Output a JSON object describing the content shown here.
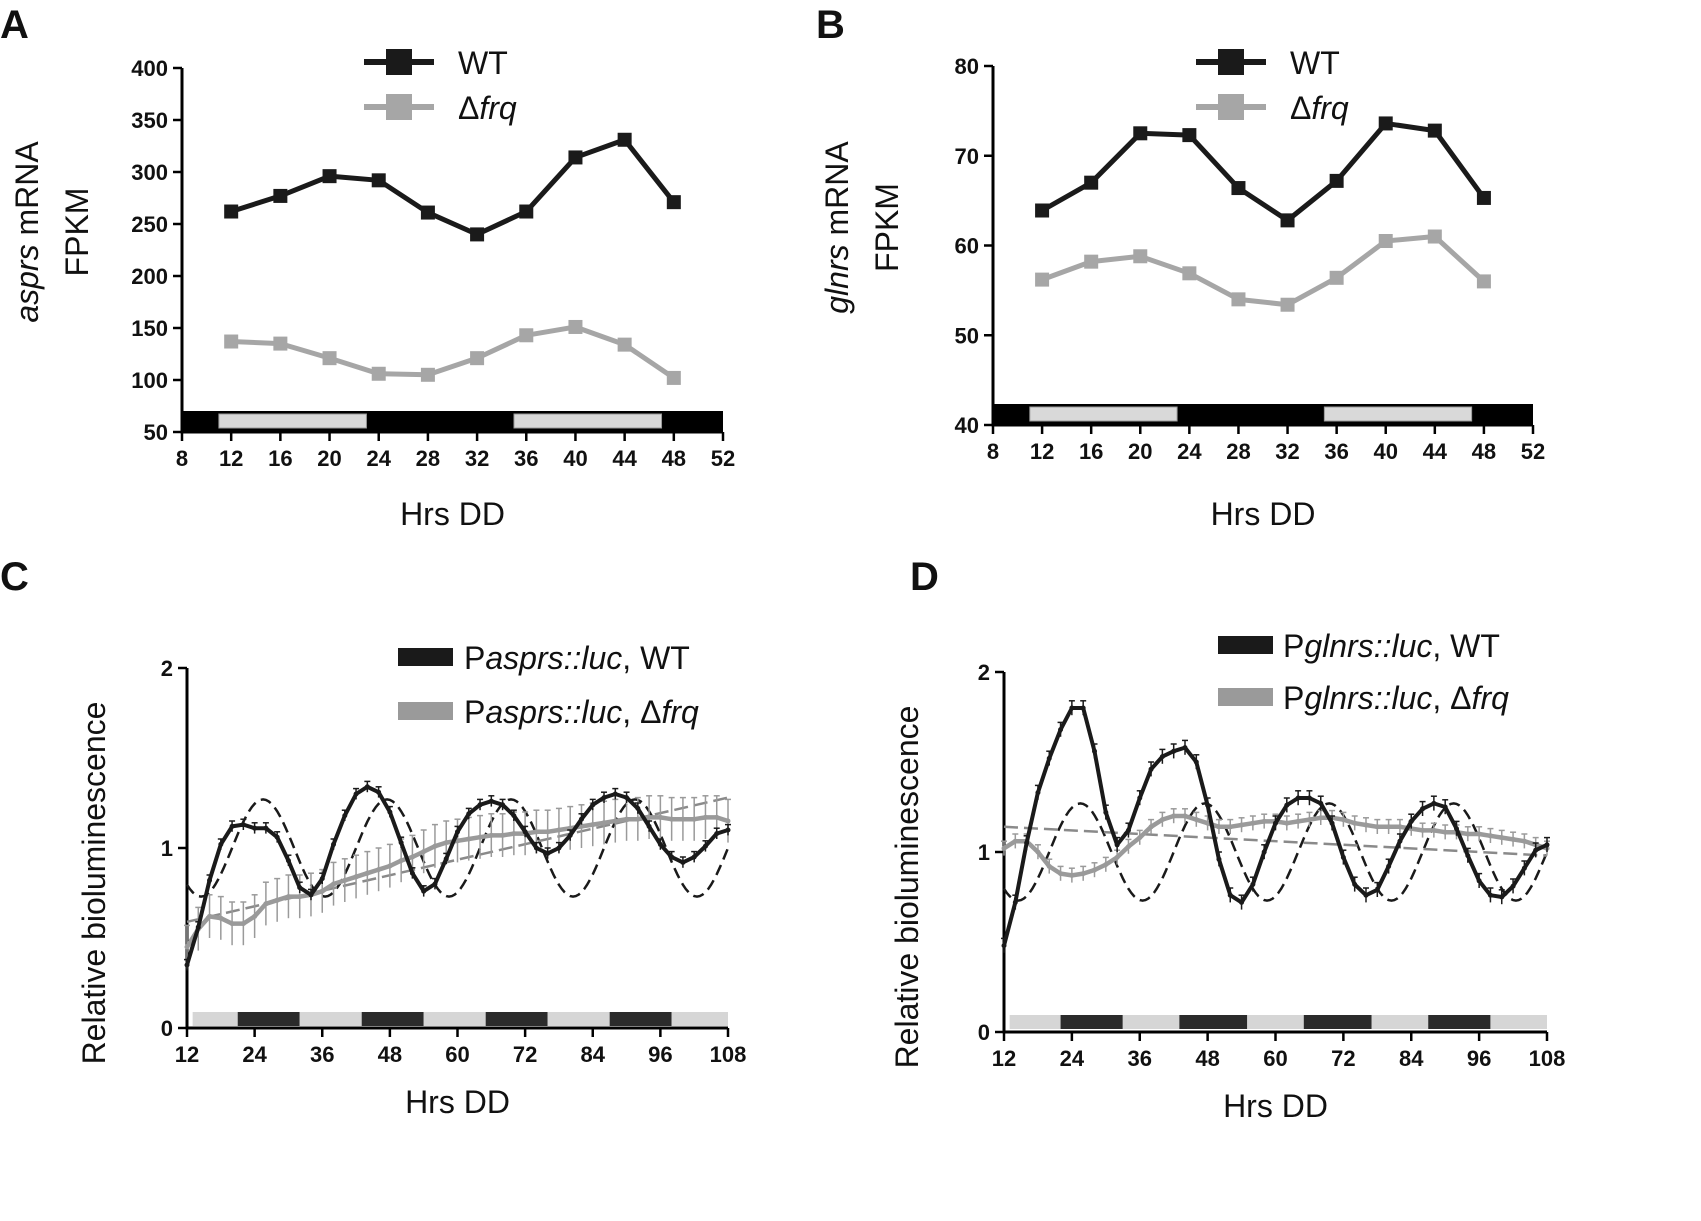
{
  "chart_data": [
    {
      "panel": "A",
      "type": "line",
      "x": [
        12,
        16,
        20,
        24,
        28,
        32,
        36,
        40,
        44,
        48
      ],
      "series": [
        {
          "name": "WT",
          "color": "#1a1a1a",
          "values": [
            262,
            277,
            296,
            292,
            261,
            240,
            262,
            314,
            331,
            271
          ]
        },
        {
          "name": "Δfrq",
          "color": "#a6a6a6",
          "values": [
            137,
            135,
            121,
            106,
            105,
            121,
            143,
            151,
            134,
            102
          ]
        }
      ],
      "xlabel": "Hrs DD",
      "ylabel_italic": "asprs",
      "ylabel_rest": " mRNA",
      "ylabel_line2": "FPKM",
      "xlim": [
        8,
        52
      ],
      "ylim": [
        50,
        400
      ],
      "xticks": [
        8,
        12,
        16,
        20,
        24,
        28,
        32,
        36,
        40,
        44,
        48,
        52
      ],
      "yticks": [
        50,
        100,
        150,
        200,
        250,
        300,
        350,
        400
      ],
      "marker": "square",
      "legend_position": "top-center",
      "condition_bar": [
        {
          "from": 8,
          "to": 11,
          "state": "dark"
        },
        {
          "from": 11,
          "to": 23,
          "state": "light"
        },
        {
          "from": 23,
          "to": 35,
          "state": "dark"
        },
        {
          "from": 35,
          "to": 47,
          "state": "light"
        },
        {
          "from": 47,
          "to": 52,
          "state": "dark"
        }
      ]
    },
    {
      "panel": "B",
      "type": "line",
      "x": [
        12,
        16,
        20,
        24,
        28,
        32,
        36,
        40,
        44,
        48
      ],
      "series": [
        {
          "name": "WT",
          "color": "#1a1a1a",
          "values": [
            63.9,
            67.0,
            72.5,
            72.3,
            66.4,
            62.8,
            67.2,
            73.6,
            72.8,
            65.3
          ]
        },
        {
          "name": "Δfrq",
          "color": "#a6a6a6",
          "values": [
            56.2,
            58.2,
            58.8,
            56.9,
            54.0,
            53.4,
            56.4,
            60.5,
            61.0,
            56.0
          ]
        }
      ],
      "xlabel": "Hrs DD",
      "ylabel_italic": "glnrs",
      "ylabel_rest": " mRNA",
      "ylabel_line2": "FPKM",
      "xlim": [
        8,
        52
      ],
      "ylim": [
        40,
        80
      ],
      "xticks": [
        8,
        12,
        16,
        20,
        24,
        28,
        32,
        36,
        40,
        44,
        48,
        52
      ],
      "yticks": [
        40,
        50,
        60,
        70,
        80
      ],
      "marker": "square",
      "legend_position": "top-center",
      "condition_bar": [
        {
          "from": 8,
          "to": 11,
          "state": "dark"
        },
        {
          "from": 11,
          "to": 23,
          "state": "light"
        },
        {
          "from": 23,
          "to": 35,
          "state": "dark"
        },
        {
          "from": 35,
          "to": 47,
          "state": "light"
        },
        {
          "from": 47,
          "to": 52,
          "state": "dark"
        }
      ]
    },
    {
      "panel": "C",
      "type": "line",
      "series": [
        {
          "name_prefix": "P",
          "name_italic": "asprs::luc",
          "name_suffix": ", WT",
          "color": "#1a1a1a",
          "x": [
            12,
            14,
            16,
            18,
            20,
            22,
            24,
            26,
            28,
            30,
            32,
            34,
            36,
            38,
            40,
            42,
            44,
            46,
            48,
            50,
            52,
            54,
            56,
            58,
            60,
            62,
            64,
            66,
            68,
            70,
            72,
            74,
            76,
            78,
            80,
            82,
            84,
            86,
            88,
            90,
            92,
            94,
            96,
            98,
            100,
            102,
            104,
            106,
            108
          ],
          "values": [
            0.35,
            0.56,
            0.82,
            1.02,
            1.12,
            1.13,
            1.11,
            1.11,
            1.06,
            0.93,
            0.78,
            0.74,
            0.83,
            1.02,
            1.18,
            1.3,
            1.34,
            1.31,
            1.2,
            1.03,
            0.86,
            0.76,
            0.8,
            0.94,
            1.09,
            1.19,
            1.24,
            1.26,
            1.24,
            1.18,
            1.09,
            1.0,
            0.97,
            1.0,
            1.07,
            1.16,
            1.24,
            1.28,
            1.3,
            1.28,
            1.22,
            1.12,
            1.02,
            0.95,
            0.92,
            0.95,
            1.01,
            1.08,
            1.1
          ],
          "error": 0.03
        },
        {
          "name_prefix": "P",
          "name_italic": "asprs::luc",
          "name_suffix": ", Δfrq",
          "color": "#9a9a9a",
          "x": [
            12,
            14,
            16,
            18,
            20,
            22,
            24,
            26,
            28,
            30,
            32,
            34,
            36,
            38,
            40,
            42,
            44,
            46,
            48,
            50,
            52,
            54,
            56,
            58,
            60,
            62,
            64,
            66,
            68,
            70,
            72,
            74,
            76,
            78,
            80,
            82,
            84,
            86,
            88,
            90,
            92,
            94,
            96,
            98,
            100,
            102,
            104,
            106,
            108
          ],
          "values": [
            0.45,
            0.55,
            0.62,
            0.61,
            0.58,
            0.58,
            0.62,
            0.69,
            0.71,
            0.73,
            0.73,
            0.74,
            0.76,
            0.8,
            0.82,
            0.84,
            0.86,
            0.88,
            0.9,
            0.93,
            0.95,
            0.98,
            1.01,
            1.03,
            1.04,
            1.05,
            1.06,
            1.07,
            1.07,
            1.08,
            1.08,
            1.09,
            1.09,
            1.1,
            1.11,
            1.12,
            1.13,
            1.14,
            1.15,
            1.16,
            1.16,
            1.17,
            1.17,
            1.16,
            1.16,
            1.16,
            1.17,
            1.17,
            1.15
          ],
          "error": 0.12
        }
      ],
      "fits": [
        {
          "kind": "sinusoid",
          "style": "dashed",
          "color": "#1a1a1a",
          "mean": 1.0,
          "amplitude": 0.27,
          "period": 22.0,
          "peak": 25.5
        },
        {
          "kind": "linear",
          "style": "dashed",
          "color": "#8a8a8a",
          "from": [
            12,
            0.59
          ],
          "to": [
            108,
            1.28
          ]
        }
      ],
      "xlabel": "Hrs DD",
      "ylabel": "Relative bioluminescence",
      "xlim": [
        12,
        108
      ],
      "ylim": [
        0,
        2
      ],
      "xticks": [
        12,
        24,
        36,
        48,
        60,
        72,
        84,
        96,
        108
      ],
      "yticks": [
        0,
        1,
        2
      ],
      "legend_position": "top-right",
      "condition_bar": [
        {
          "from": 13,
          "to": 21,
          "state": "light"
        },
        {
          "from": 21,
          "to": 32,
          "state": "dark"
        },
        {
          "from": 32,
          "to": 43,
          "state": "light"
        },
        {
          "from": 43,
          "to": 54,
          "state": "dark"
        },
        {
          "from": 54,
          "to": 65,
          "state": "light"
        },
        {
          "from": 65,
          "to": 76,
          "state": "dark"
        },
        {
          "from": 76,
          "to": 87,
          "state": "light"
        },
        {
          "from": 87,
          "to": 98,
          "state": "dark"
        },
        {
          "from": 98,
          "to": 108,
          "state": "light"
        }
      ]
    },
    {
      "panel": "D",
      "type": "line",
      "series": [
        {
          "name_prefix": "P",
          "name_italic": "glnrs::luc",
          "name_suffix": ", WT",
          "color": "#1a1a1a",
          "x": [
            12,
            14,
            16,
            18,
            20,
            22,
            24,
            26,
            28,
            30,
            32,
            34,
            36,
            38,
            40,
            42,
            44,
            46,
            48,
            50,
            52,
            54,
            56,
            58,
            60,
            62,
            64,
            66,
            68,
            70,
            72,
            74,
            76,
            78,
            80,
            82,
            84,
            86,
            88,
            90,
            92,
            94,
            96,
            98,
            100,
            102,
            104,
            106,
            108
          ],
          "values": [
            0.48,
            0.72,
            1.05,
            1.33,
            1.52,
            1.68,
            1.8,
            1.8,
            1.56,
            1.22,
            1.04,
            1.12,
            1.3,
            1.46,
            1.53,
            1.56,
            1.58,
            1.5,
            1.26,
            0.96,
            0.76,
            0.72,
            0.82,
            1.0,
            1.16,
            1.26,
            1.3,
            1.3,
            1.27,
            1.16,
            0.97,
            0.82,
            0.76,
            0.79,
            0.92,
            1.06,
            1.17,
            1.24,
            1.27,
            1.25,
            1.13,
            0.98,
            0.84,
            0.76,
            0.75,
            0.81,
            0.91,
            1.01,
            1.04
          ],
          "error": 0.04
        },
        {
          "name_prefix": "P",
          "name_italic": "glnrs::luc",
          "name_suffix": ", Δfrq",
          "color": "#9a9a9a",
          "x": [
            12,
            14,
            16,
            18,
            20,
            22,
            24,
            26,
            28,
            30,
            32,
            34,
            36,
            38,
            40,
            42,
            44,
            46,
            48,
            50,
            52,
            54,
            56,
            58,
            60,
            62,
            64,
            66,
            68,
            70,
            72,
            74,
            76,
            78,
            80,
            82,
            84,
            86,
            88,
            90,
            92,
            94,
            96,
            98,
            100,
            102,
            104,
            106,
            108
          ],
          "values": [
            1.02,
            1.06,
            1.06,
            1.0,
            0.92,
            0.88,
            0.87,
            0.88,
            0.9,
            0.93,
            0.97,
            1.03,
            1.08,
            1.14,
            1.18,
            1.2,
            1.2,
            1.18,
            1.16,
            1.14,
            1.14,
            1.15,
            1.16,
            1.17,
            1.17,
            1.16,
            1.17,
            1.18,
            1.19,
            1.19,
            1.18,
            1.16,
            1.15,
            1.14,
            1.14,
            1.14,
            1.13,
            1.12,
            1.12,
            1.11,
            1.11,
            1.1,
            1.1,
            1.09,
            1.08,
            1.07,
            1.06,
            1.04,
            1.02
          ],
          "error": 0.04
        }
      ],
      "fits": [
        {
          "kind": "sinusoid",
          "style": "dashed",
          "color": "#1a1a1a",
          "mean": 1.0,
          "amplitude": 0.27,
          "period": 22.0,
          "peak": 25.5
        },
        {
          "kind": "linear",
          "style": "dashed",
          "color": "#8a8a8a",
          "from": [
            12,
            1.14
          ],
          "to": [
            108,
            0.98
          ]
        }
      ],
      "xlabel": "Hrs DD",
      "ylabel": "Relative bioluminescence",
      "xlim": [
        12,
        108
      ],
      "ylim": [
        0,
        2
      ],
      "xticks": [
        12,
        24,
        36,
        48,
        60,
        72,
        84,
        96,
        108
      ],
      "yticks": [
        0,
        1,
        2
      ],
      "legend_position": "top-right",
      "condition_bar": [
        {
          "from": 13,
          "to": 22,
          "state": "light"
        },
        {
          "from": 22,
          "to": 33,
          "state": "dark"
        },
        {
          "from": 33,
          "to": 43,
          "state": "light"
        },
        {
          "from": 43,
          "to": 55,
          "state": "dark"
        },
        {
          "from": 55,
          "to": 65,
          "state": "light"
        },
        {
          "from": 65,
          "to": 77,
          "state": "dark"
        },
        {
          "from": 77,
          "to": 87,
          "state": "light"
        },
        {
          "from": 87,
          "to": 98,
          "state": "dark"
        },
        {
          "from": 98,
          "to": 108,
          "state": "light"
        }
      ]
    }
  ]
}
